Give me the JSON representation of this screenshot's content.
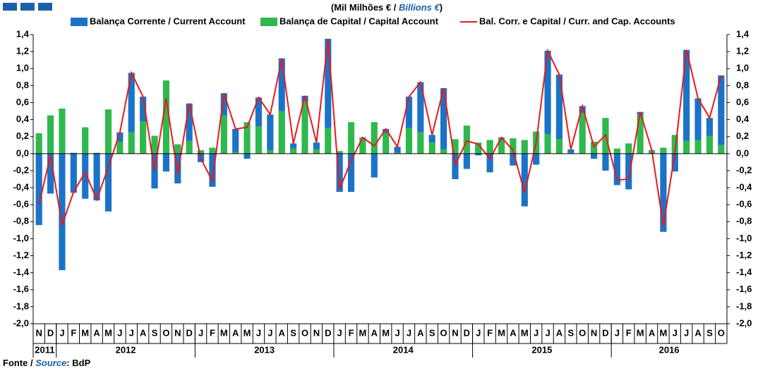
{
  "chart_data": {
    "type": "bar",
    "subtitle": [
      "(Mil Milhões € / ",
      "Billions €",
      ")"
    ],
    "source": [
      "Fonte / ",
      "Source",
      ": BdP"
    ],
    "categories": [
      "N",
      "D",
      "J",
      "F",
      "M",
      "A",
      "M",
      "J",
      "J",
      "A",
      "S",
      "O",
      "N",
      "D",
      "J",
      "F",
      "M",
      "A",
      "M",
      "J",
      "J",
      "A",
      "S",
      "O",
      "N",
      "D",
      "J",
      "F",
      "M",
      "A",
      "M",
      "J",
      "J",
      "A",
      "S",
      "O",
      "N",
      "D",
      "J",
      "F",
      "M",
      "A",
      "M",
      "J",
      "J",
      "A",
      "S",
      "O",
      "N",
      "D",
      "J",
      "F",
      "M",
      "A",
      "M",
      "J",
      "J",
      "A",
      "S",
      "O"
    ],
    "years": [
      "2011",
      "2012",
      "2013",
      "2014",
      "2015",
      "2016"
    ],
    "series": [
      {
        "name": "Balança Corrente / Current Account",
        "type": "bar",
        "color": "#1b73c8",
        "values": [
          -0.84,
          -0.47,
          -1.37,
          -0.46,
          -0.53,
          -0.55,
          -0.68,
          0.11,
          0.7,
          0.29,
          -0.41,
          -0.21,
          -0.35,
          0.44,
          -0.1,
          -0.39,
          0.26,
          0.27,
          -0.06,
          0.34,
          0.42,
          0.62,
          0.06,
          0.06,
          0.08,
          1.05,
          -0.45,
          -0.45,
          0.01,
          -0.28,
          0.05,
          0.07,
          0.37,
          0.59,
          0.09,
          0.72,
          -0.3,
          -0.18,
          -0.02,
          -0.22,
          0.01,
          -0.14,
          -0.62,
          -0.13,
          0.98,
          0.76,
          0.04,
          0.08,
          -0.06,
          -0.2,
          -0.37,
          -0.42,
          0.03,
          0.01,
          -0.92,
          -0.21,
          1.07,
          0.49,
          0.21,
          0.82
        ]
      },
      {
        "name": "Balança de Capital / Capital Account",
        "type": "bar",
        "color": "#2fb84e",
        "values": [
          0.24,
          0.45,
          0.53,
          0.01,
          0.31,
          0.01,
          0.52,
          0.14,
          0.25,
          0.38,
          0.21,
          0.86,
          0.11,
          0.15,
          0.04,
          0.07,
          0.45,
          0.02,
          0.37,
          0.32,
          0.04,
          0.5,
          0.06,
          0.62,
          0.05,
          0.3,
          0.03,
          0.37,
          0.18,
          0.37,
          0.24,
          0.01,
          0.3,
          0.25,
          0.13,
          0.05,
          0.17,
          0.33,
          0.13,
          0.16,
          0.18,
          0.18,
          0.16,
          0.26,
          0.23,
          0.17,
          0.01,
          0.48,
          0.14,
          0.42,
          0.06,
          0.12,
          0.46,
          0.03,
          0.07,
          0.22,
          0.15,
          0.16,
          0.21,
          0.1
        ]
      },
      {
        "name": "Bal. Corr. e Capital / Curr. and Cap. Accounts",
        "type": "line",
        "color": "#e8191c",
        "values": [
          -0.6,
          -0.02,
          -0.84,
          -0.45,
          -0.22,
          -0.54,
          -0.16,
          0.25,
          0.95,
          0.67,
          -0.2,
          0.65,
          -0.24,
          0.59,
          -0.06,
          -0.32,
          0.71,
          0.29,
          0.31,
          0.66,
          0.46,
          1.12,
          0.12,
          0.68,
          0.13,
          1.35,
          -0.42,
          -0.08,
          0.19,
          0.09,
          0.29,
          0.08,
          0.67,
          0.84,
          0.22,
          0.77,
          -0.13,
          0.15,
          0.11,
          -0.06,
          0.19,
          0.04,
          -0.46,
          0.13,
          1.21,
          0.93,
          0.05,
          0.56,
          0.08,
          0.22,
          -0.31,
          -0.3,
          0.49,
          0.04,
          -0.85,
          0.01,
          1.22,
          0.65,
          0.42,
          0.92
        ]
      }
    ],
    "ylim": [
      -2.0,
      1.4
    ],
    "yticks": [
      {
        "value": -2.0,
        "label": "-2,0"
      },
      {
        "value": -1.8,
        "label": "-1,8"
      },
      {
        "value": -1.6,
        "label": "-1,6"
      },
      {
        "value": -1.4,
        "label": "-1,4"
      },
      {
        "value": -1.2,
        "label": "-1,2"
      },
      {
        "value": -1.0,
        "label": "-1,0"
      },
      {
        "value": -0.8,
        "label": "-0,8"
      },
      {
        "value": -0.6,
        "label": "-0,6"
      },
      {
        "value": -0.4,
        "label": "-0,4"
      },
      {
        "value": -0.2,
        "label": "-0,2"
      },
      {
        "value": 0,
        "label": "0,0"
      },
      {
        "value": 0.2,
        "label": "0,2"
      },
      {
        "value": 0.4,
        "label": "0,4"
      },
      {
        "value": 0.6,
        "label": "0,6"
      },
      {
        "value": 0.8,
        "label": "0,8"
      },
      {
        "value": 1.0,
        "label": "1,0"
      },
      {
        "value": 1.2,
        "label": "1,2"
      },
      {
        "value": 1.4,
        "label": "1,4"
      }
    ],
    "y2lim": [
      -2.0,
      1.4
    ],
    "y2ticks": [
      {
        "value": -2.0,
        "label": "-2,0"
      },
      {
        "value": -1.8,
        "label": "-1,8"
      },
      {
        "value": -1.6,
        "label": "-1,6"
      },
      {
        "value": -1.4,
        "label": "-1,4"
      },
      {
        "value": -1.2,
        "label": "-1,2"
      },
      {
        "value": -1.0,
        "label": "-1,0"
      },
      {
        "value": -0.8,
        "label": "-0,8"
      },
      {
        "value": -0.6,
        "label": "-0,6"
      },
      {
        "value": -0.4,
        "label": "-0,4"
      },
      {
        "value": -0.2,
        "label": "-0,2"
      },
      {
        "value": 0,
        "label": "0,0"
      },
      {
        "value": 0.2,
        "label": "0,2"
      },
      {
        "value": 0.4,
        "label": "0,4"
      },
      {
        "value": 0.6,
        "label": "0,6"
      },
      {
        "value": 0.8,
        "label": "0,8"
      },
      {
        "value": 1.0,
        "label": "1,0"
      },
      {
        "value": 1.2,
        "label": "1,2"
      },
      {
        "value": 1.4,
        "label": "1,4"
      }
    ],
    "grid": false
  }
}
